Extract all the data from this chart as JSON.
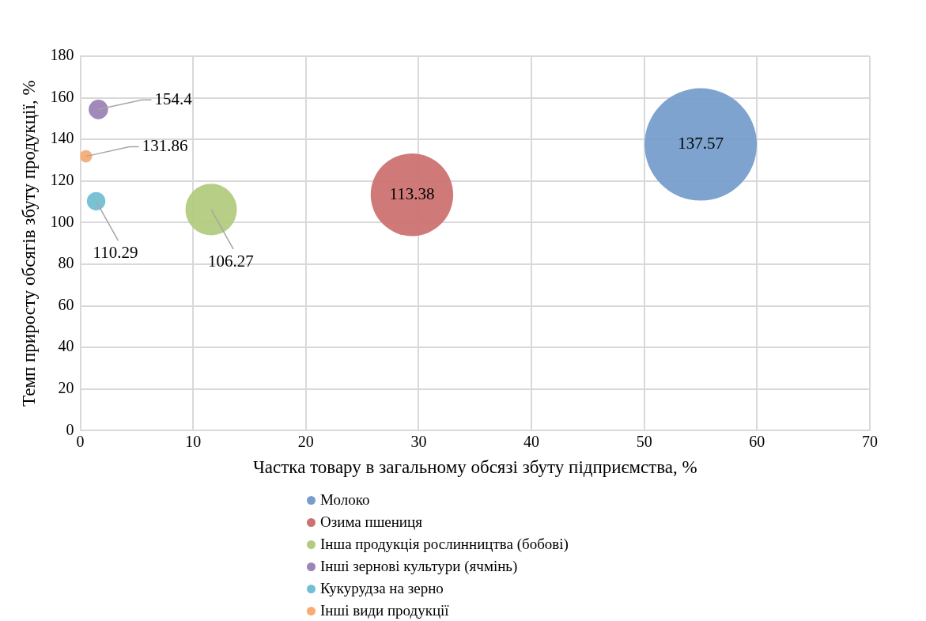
{
  "chart_data": {
    "type": "bubble",
    "xlabel": "Частка товару в загальному обсязі збуту підприємства, %",
    "ylabel": "Темп приросту обсягів збуту продукції, %",
    "xlim": [
      0,
      70
    ],
    "xticks": [
      0,
      10,
      20,
      30,
      40,
      50,
      60,
      70
    ],
    "ylim": [
      0,
      180
    ],
    "yticks": [
      0,
      20,
      40,
      60,
      80,
      100,
      120,
      140,
      160,
      180
    ],
    "grid": true,
    "legend": "bottom",
    "data_labels": true,
    "series": [
      {
        "name": "Молоко",
        "color": "#779ecb",
        "x": [
          55.0
        ],
        "values": [
          137.57
        ],
        "sizes": [
          1
        ]
      },
      {
        "name": "Озима пшениця",
        "color": "#cc7372",
        "x": [
          29.4
        ],
        "values": [
          113.38
        ],
        "sizes": [
          0.54
        ]
      },
      {
        "name": "Інша продукція рослинництва (бобові)",
        "color": "#b3cb80",
        "x": [
          11.6
        ],
        "values": [
          106.27
        ],
        "sizes": [
          0.21
        ]
      },
      {
        "name": "Інші зернові культури (ячмінь)",
        "color": "#9c84b5",
        "x": [
          1.6
        ],
        "values": [
          154.4
        ],
        "sizes": [
          0.03
        ]
      },
      {
        "name": "Кукурудза на зерно",
        "color": "#72bfd3",
        "x": [
          1.4
        ],
        "values": [
          110.29
        ],
        "sizes": [
          0.027
        ]
      },
      {
        "name": "Інші види продукції",
        "color": "#f8ac73",
        "x": [
          0.5
        ],
        "values": [
          131.86
        ],
        "sizes": [
          0.012
        ]
      }
    ]
  }
}
